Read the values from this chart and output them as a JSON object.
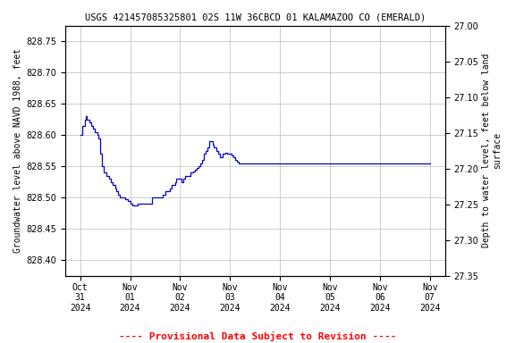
{
  "title": "USGS 421457085325801 02S 11W 36CBCD 01 KALAMAZOO CO (EMERALD)",
  "ylabel_left": "Groundwater level above NAVD 1988, feet",
  "ylabel_right": "Depth to water level, feet below land\nsurface",
  "footnote": "---- Provisional Data Subject to Revision ----",
  "footnote_color": "#ff0000",
  "line_color": "#0000cc",
  "background_color": "#ffffff",
  "grid_color": "#bbbbbb",
  "ylim_left": [
    828.375,
    828.775
  ],
  "ylim_right": [
    27.0,
    27.35
  ],
  "yticks_left": [
    828.4,
    828.45,
    828.5,
    828.55,
    828.6,
    828.65,
    828.7,
    828.75
  ],
  "yticks_right": [
    27.0,
    27.05,
    27.1,
    27.15,
    27.2,
    27.25,
    27.3,
    27.35
  ],
  "xtick_labels": [
    "Oct\n31\n2024",
    "Nov\n01\n2024",
    "Nov\n02\n2024",
    "Nov\n03\n2024",
    "Nov\n04\n2024",
    "Nov\n05\n2024",
    "Nov\n06\n2024",
    "Nov\n07\n2024"
  ],
  "xtick_positions": [
    0,
    1,
    2,
    3,
    4,
    5,
    6,
    7
  ],
  "x": [
    0.0,
    0.05,
    0.1,
    0.12,
    0.14,
    0.18,
    0.22,
    0.26,
    0.3,
    0.34,
    0.36,
    0.4,
    0.44,
    0.48,
    0.52,
    0.55,
    0.58,
    0.62,
    0.65,
    0.7,
    0.73,
    0.76,
    0.8,
    0.85,
    0.9,
    0.95,
    1.0,
    1.05,
    1.08,
    1.12,
    1.16,
    1.2,
    1.24,
    1.28,
    1.32,
    1.36,
    1.4,
    1.44,
    1.48,
    1.52,
    1.55,
    1.58,
    1.62,
    1.65,
    1.7,
    1.73,
    1.76,
    1.8,
    1.83,
    1.86,
    1.9,
    1.93,
    1.96,
    2.0,
    2.03,
    2.06,
    2.1,
    2.13,
    2.16,
    2.2,
    2.23,
    2.26,
    2.3,
    2.33,
    2.36,
    2.4,
    2.44,
    2.48,
    2.52,
    2.55,
    2.58,
    2.62,
    2.65,
    2.68,
    2.72,
    2.76,
    2.8,
    2.85,
    2.9,
    2.95,
    3.0,
    3.03,
    3.06,
    3.1,
    3.14,
    3.18,
    3.22,
    3.26,
    3.3,
    3.34,
    3.38,
    3.5,
    4.0,
    4.5,
    5.0,
    5.5,
    6.0,
    6.5,
    7.0
  ],
  "y": [
    828.6,
    828.615,
    828.625,
    828.63,
    828.625,
    828.62,
    828.615,
    828.61,
    828.605,
    828.6,
    828.595,
    828.57,
    828.55,
    828.54,
    828.535,
    828.535,
    828.53,
    828.525,
    828.52,
    828.515,
    828.51,
    828.505,
    828.5,
    828.5,
    828.498,
    828.495,
    828.49,
    828.488,
    828.487,
    828.487,
    828.49,
    828.49,
    828.49,
    828.49,
    828.49,
    828.49,
    828.49,
    828.5,
    828.5,
    828.5,
    828.5,
    828.5,
    828.5,
    828.505,
    828.51,
    828.51,
    828.51,
    828.515,
    828.52,
    828.52,
    828.525,
    828.53,
    828.53,
    828.53,
    828.525,
    828.53,
    828.535,
    828.535,
    828.535,
    828.54,
    828.54,
    828.542,
    828.545,
    828.548,
    828.55,
    828.555,
    828.56,
    828.57,
    828.575,
    828.58,
    828.59,
    828.59,
    828.585,
    828.58,
    828.575,
    828.57,
    828.565,
    828.57,
    828.572,
    828.57,
    828.57,
    828.568,
    828.565,
    828.56,
    828.558,
    828.555,
    828.555,
    828.555,
    828.555,
    828.555,
    828.555,
    828.555,
    828.555,
    828.555,
    828.555,
    828.555,
    828.555,
    828.555,
    828.555
  ]
}
